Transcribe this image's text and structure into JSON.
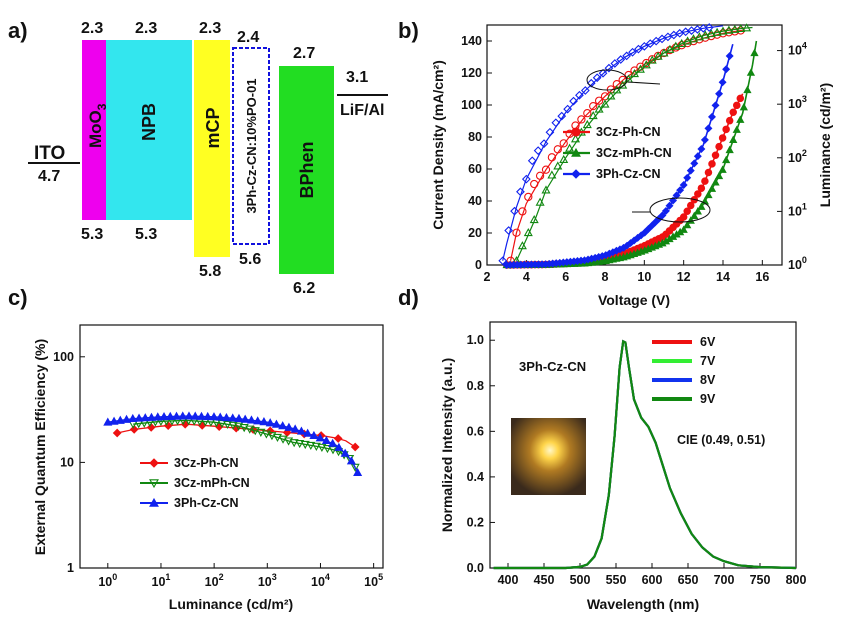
{
  "panels": {
    "a": "a)",
    "b": "b)",
    "c": "c)",
    "d": "d)"
  },
  "colors": {
    "moo3": "#ee00ee",
    "npb": "#33e6ee",
    "mcp": "#ffff22",
    "bphen": "#22dd22",
    "emitter_border": "#1111dd",
    "s_3czph": "#ee1111",
    "s_3czmph": "#118811",
    "s_3phcz": "#1122ee",
    "d_6v": "#ee1111",
    "d_7v": "#33ee33",
    "d_8v": "#1133ee",
    "d_9v": "#118811"
  },
  "energy_diagram": {
    "layers": [
      {
        "name": "ITO",
        "lumo": null,
        "homo": "4.7"
      },
      {
        "name": "MoO",
        "sub": "3",
        "lumo": "2.3",
        "homo": "5.3"
      },
      {
        "name": "NPB",
        "lumo": "2.3",
        "homo": "5.3"
      },
      {
        "name": "mCP",
        "lumo": "2.3",
        "homo": "5.8"
      },
      {
        "name": "3Ph-Cz-CN:10%PO-01",
        "lumo": "2.4",
        "homo": "5.6"
      },
      {
        "name": "BPhen",
        "lumo": "2.7",
        "homo": "6.2"
      },
      {
        "name": "LiF/Al",
        "lumo": "3.1",
        "homo": null
      }
    ]
  },
  "chart_data": [
    {
      "type": "line",
      "panel": "b",
      "xlabel": "Voltage (V)",
      "ylabel": "Current Density (mA/cm²)",
      "y2label": "Luminance (cd/m²)",
      "xlim": [
        2,
        17
      ],
      "ylim": [
        0,
        150
      ],
      "y2lim": [
        1,
        30000
      ],
      "y2scale": "log",
      "x_ticks": [
        "2",
        "4",
        "6",
        "8",
        "10",
        "12",
        "14",
        "16"
      ],
      "y_ticks": [
        "0",
        "20",
        "40",
        "60",
        "80",
        "100",
        "120",
        "140"
      ],
      "y2_ticks": [
        {
          "base": "10",
          "exp": "0"
        },
        {
          "base": "10",
          "exp": "1"
        },
        {
          "base": "10",
          "exp": "2"
        },
        {
          "base": "10",
          "exp": "3"
        },
        {
          "base": "10",
          "exp": "4"
        }
      ],
      "legend": [
        "3Cz-Ph-CN",
        "3Cz-mPh-CN",
        "3Ph-Cz-CN"
      ],
      "series": [
        {
          "name": "3Cz-Ph-CN",
          "color_key": "s_3czph",
          "current": [
            [
              3,
              0
            ],
            [
              5,
              0.3
            ],
            [
              7,
              1.5
            ],
            [
              8,
              3.5
            ],
            [
              9,
              7
            ],
            [
              10,
              12
            ],
            [
              11,
              18
            ],
            [
              12,
              30
            ],
            [
              13,
              50
            ],
            [
              14,
              80
            ],
            [
              14.5,
              95
            ],
            [
              15,
              107
            ]
          ],
          "luminance": [
            [
              3.2,
              1.2
            ],
            [
              3.5,
              4
            ],
            [
              4,
              14
            ],
            [
              5,
              60
            ],
            [
              6,
              200
            ],
            [
              7,
              600
            ],
            [
              8,
              1400
            ],
            [
              9,
              3000
            ],
            [
              10,
              5500
            ],
            [
              11,
              9000
            ],
            [
              12,
              13000
            ],
            [
              13,
              17000
            ],
            [
              14,
              21000
            ],
            [
              15,
              24000
            ]
          ]
        },
        {
          "name": "3Cz-mPh-CN",
          "color_key": "s_3czmph",
          "current": [
            [
              3,
              0
            ],
            [
              5,
              0.2
            ],
            [
              7,
              1
            ],
            [
              8,
              2.5
            ],
            [
              9,
              5
            ],
            [
              10,
              9
            ],
            [
              11,
              14
            ],
            [
              12,
              22
            ],
            [
              13,
              38
            ],
            [
              14,
              60
            ],
            [
              15,
              95
            ],
            [
              15.5,
              125
            ],
            [
              15.7,
              140
            ]
          ],
          "luminance": [
            [
              3.5,
              1.2
            ],
            [
              4,
              3
            ],
            [
              4.5,
              8
            ],
            [
              5,
              25
            ],
            [
              6,
              100
            ],
            [
              7,
              350
            ],
            [
              8,
              1000
            ],
            [
              9,
              2400
            ],
            [
              10,
              5000
            ],
            [
              11,
              9000
            ],
            [
              12,
              14000
            ],
            [
              13,
              19000
            ],
            [
              14,
              23000
            ],
            [
              15,
              26000
            ],
            [
              15.5,
              27000
            ]
          ]
        },
        {
          "name": "3Ph-Cz-CN",
          "color_key": "s_3phcz",
          "current": [
            [
              3,
              0
            ],
            [
              5,
              0.5
            ],
            [
              7,
              3
            ],
            [
              8,
              6
            ],
            [
              9,
              11
            ],
            [
              10,
              20
            ],
            [
              11,
              32
            ],
            [
              12,
              50
            ],
            [
              13,
              75
            ],
            [
              13.5,
              95
            ],
            [
              14,
              115
            ],
            [
              14.5,
              138
            ]
          ],
          "luminance": [
            [
              2.8,
              1.2
            ],
            [
              3,
              2.5
            ],
            [
              3.5,
              12
            ],
            [
              4,
              40
            ],
            [
              5,
              200
            ],
            [
              6,
              700
            ],
            [
              7,
              1800
            ],
            [
              8,
              4000
            ],
            [
              9,
              7500
            ],
            [
              10,
              12000
            ],
            [
              11,
              17000
            ],
            [
              12,
              22000
            ],
            [
              13,
              26000
            ],
            [
              14,
              29000
            ]
          ]
        }
      ]
    },
    {
      "type": "scatter",
      "panel": "c",
      "xlabel": "Luminance (cd/m²)",
      "ylabel": "External Quantum Efficiency (%)",
      "xscale": "log",
      "yscale": "log",
      "xlim": [
        0.3,
        150000
      ],
      "ylim": [
        1,
        200
      ],
      "x_ticks": [
        {
          "base": "10",
          "exp": "0"
        },
        {
          "base": "10",
          "exp": "1"
        },
        {
          "base": "10",
          "exp": "2"
        },
        {
          "base": "10",
          "exp": "3"
        },
        {
          "base": "10",
          "exp": "4"
        },
        {
          "base": "10",
          "exp": "5"
        }
      ],
      "y_ticks": [
        "1",
        "10",
        "100"
      ],
      "legend": [
        "3Cz-Ph-CN",
        "3Cz-mPh-CN",
        "3Ph-Cz-CN"
      ],
      "series": [
        {
          "name": "3Cz-Ph-CN",
          "color_key": "s_3czph",
          "points": [
            [
              1.5,
              19
            ],
            [
              3,
              20.5
            ],
            [
              10,
              22
            ],
            [
              30,
              23
            ],
            [
              100,
              22
            ],
            [
              300,
              21
            ],
            [
              1000,
              20
            ],
            [
              3000,
              19
            ],
            [
              10000,
              18
            ],
            [
              20000,
              17
            ],
            [
              30000,
              16
            ],
            [
              45000,
              14
            ]
          ]
        },
        {
          "name": "3Cz-mPh-CN",
          "color_key": "s_3czmph",
          "points": [
            [
              3,
              23
            ],
            [
              10,
              24.5
            ],
            [
              30,
              25
            ],
            [
              100,
              24
            ],
            [
              300,
              22
            ],
            [
              1000,
              18.5
            ],
            [
              3000,
              15.5
            ],
            [
              10000,
              14
            ],
            [
              20000,
              13
            ],
            [
              35000,
              11
            ],
            [
              45000,
              9
            ]
          ]
        },
        {
          "name": "3Ph-Cz-CN",
          "color_key": "s_3phcz",
          "points": [
            [
              1,
              24
            ],
            [
              3,
              26
            ],
            [
              10,
              27
            ],
            [
              30,
              27.5
            ],
            [
              100,
              27
            ],
            [
              300,
              26
            ],
            [
              1000,
              24
            ],
            [
              3000,
              21
            ],
            [
              10000,
              17
            ],
            [
              20000,
              14.5
            ],
            [
              30000,
              12
            ],
            [
              40000,
              10
            ],
            [
              50000,
              8
            ]
          ]
        }
      ]
    },
    {
      "type": "line",
      "panel": "d",
      "xlabel": "Wavelength (nm)",
      "ylabel": "Normalized Intensity (a.u.)",
      "xlim": [
        375,
        800
      ],
      "ylim": [
        0,
        1.08
      ],
      "x_ticks": [
        "400",
        "450",
        "500",
        "550",
        "600",
        "650",
        "700",
        "750",
        "800"
      ],
      "y_ticks": [
        "0.0",
        "0.2",
        "0.4",
        "0.6",
        "0.8",
        "1.0"
      ],
      "title_inset": "3Ph-Cz-CN",
      "annotation": "CIE (0.49, 0.51)",
      "legend": [
        "6V",
        "7V",
        "8V",
        "9V"
      ],
      "spectrum": [
        [
          380,
          0
        ],
        [
          480,
          0
        ],
        [
          500,
          0.005
        ],
        [
          510,
          0.015
        ],
        [
          520,
          0.05
        ],
        [
          530,
          0.13
        ],
        [
          540,
          0.32
        ],
        [
          548,
          0.58
        ],
        [
          555,
          0.88
        ],
        [
          560,
          0.995
        ],
        [
          563,
          0.99
        ],
        [
          568,
          0.88
        ],
        [
          575,
          0.74
        ],
        [
          585,
          0.66
        ],
        [
          595,
          0.62
        ],
        [
          605,
          0.55
        ],
        [
          615,
          0.45
        ],
        [
          625,
          0.35
        ],
        [
          640,
          0.24
        ],
        [
          655,
          0.15
        ],
        [
          670,
          0.09
        ],
        [
          685,
          0.05
        ],
        [
          700,
          0.03
        ],
        [
          720,
          0.012
        ],
        [
          750,
          0.004
        ],
        [
          800,
          0
        ]
      ]
    }
  ]
}
